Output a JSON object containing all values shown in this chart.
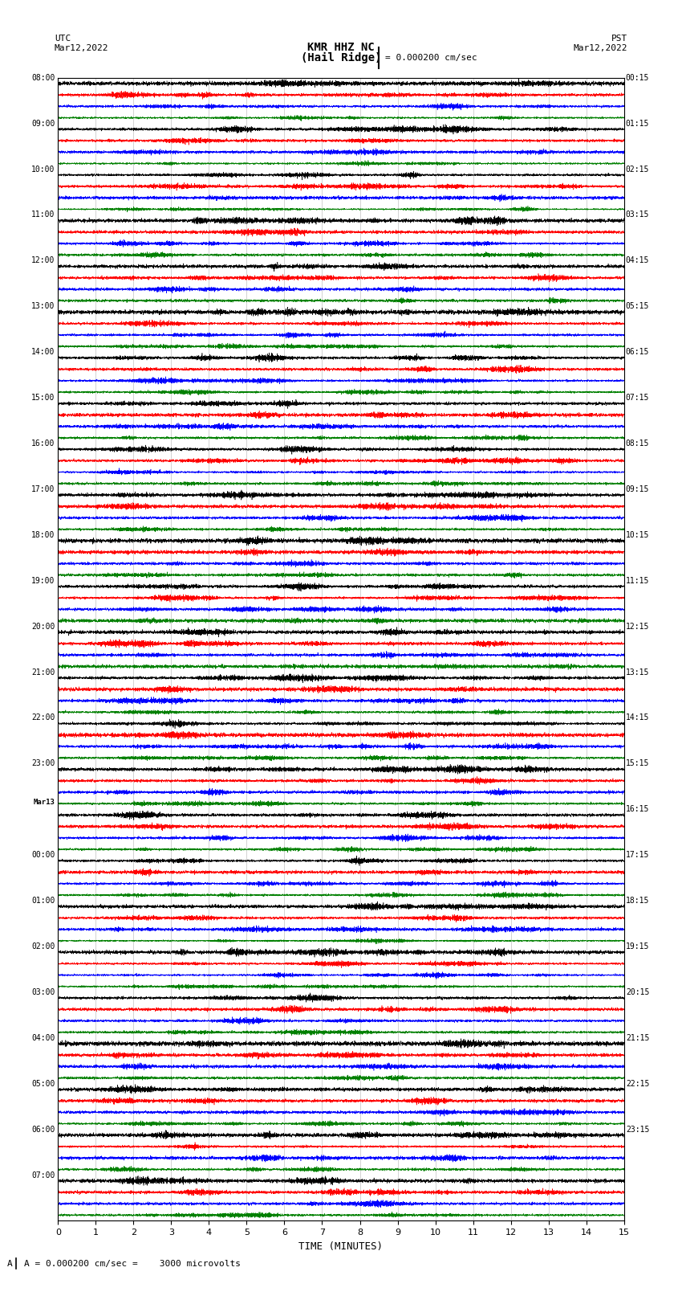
{
  "title_line1": "KMR HHZ NC",
  "title_line2": "(Hail Ridge)",
  "scale_label": "= 0.000200 cm/sec",
  "scale_note": "A = 0.000200 cm/sec =    3000 microvolts",
  "utc_label": "UTC",
  "date_left": "Mar12,2022",
  "pst_label": "PST",
  "date_right": "Mar12,2022",
  "xlabel": "TIME (MINUTES)",
  "xlim": [
    0,
    15
  ],
  "xticks": [
    0,
    1,
    2,
    3,
    4,
    5,
    6,
    7,
    8,
    9,
    10,
    11,
    12,
    13,
    14,
    15
  ],
  "colors": [
    "black",
    "red",
    "blue",
    "green"
  ],
  "background": "white",
  "left_times": [
    "08:00",
    "09:00",
    "10:00",
    "11:00",
    "12:00",
    "13:00",
    "14:00",
    "15:00",
    "16:00",
    "17:00",
    "18:00",
    "19:00",
    "20:00",
    "21:00",
    "22:00",
    "23:00",
    "Mar13",
    "00:00",
    "01:00",
    "02:00",
    "03:00",
    "04:00",
    "05:00",
    "06:00",
    "07:00"
  ],
  "right_times": [
    "00:15",
    "01:15",
    "02:15",
    "03:15",
    "04:15",
    "05:15",
    "06:15",
    "07:15",
    "08:15",
    "09:15",
    "10:15",
    "11:15",
    "12:15",
    "13:15",
    "14:15",
    "15:15",
    "16:15",
    "17:15",
    "18:15",
    "19:15",
    "20:15",
    "21:15",
    "22:15",
    "23:15"
  ],
  "num_hour_groups": 25,
  "traces_per_group": 4,
  "seed": 42,
  "fig_width": 8.5,
  "fig_height": 16.13,
  "dpi": 100
}
